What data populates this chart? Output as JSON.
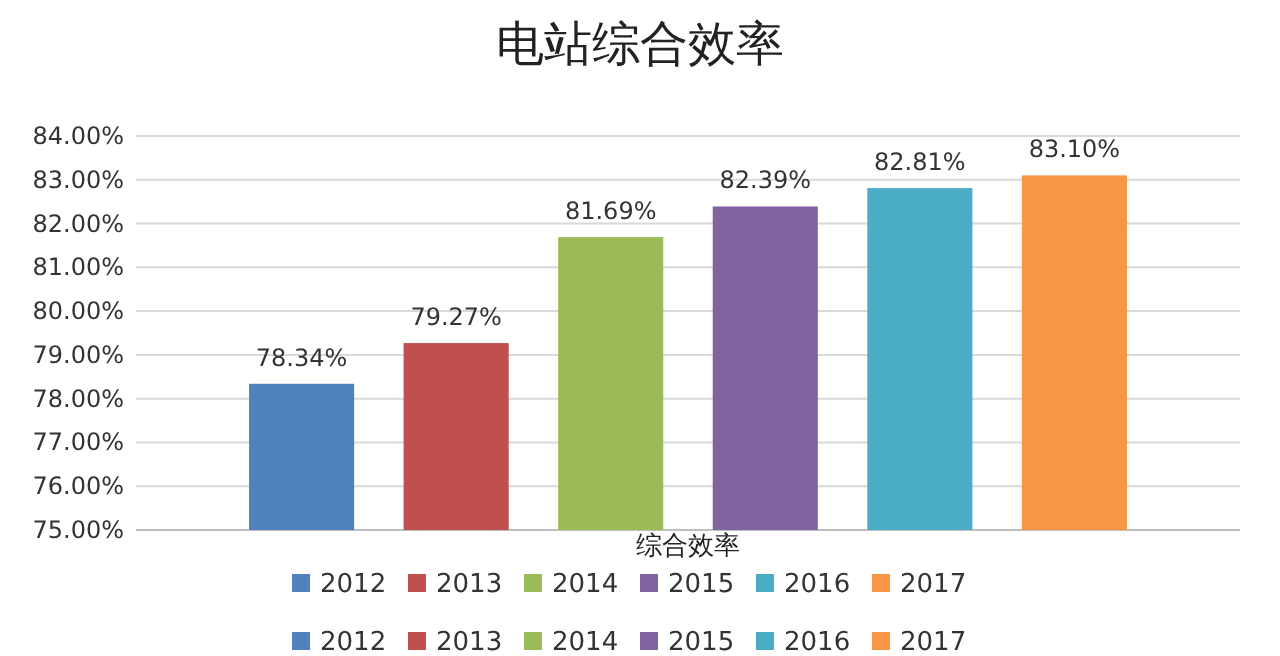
{
  "chart_data": {
    "type": "bar",
    "title": "电站综合效率",
    "categories": [
      "综合效率"
    ],
    "series": [
      {
        "name": "2012",
        "color": "#4f81bd",
        "values": [
          78.34
        ],
        "value_labels": [
          "78.34%"
        ]
      },
      {
        "name": "2013",
        "color": "#c0504d",
        "values": [
          79.27
        ],
        "value_labels": [
          "79.27%"
        ]
      },
      {
        "name": "2014",
        "color": "#9bbb59",
        "values": [
          81.69
        ],
        "value_labels": [
          "81.69%"
        ]
      },
      {
        "name": "2015",
        "color": "#8064a2",
        "values": [
          82.39
        ],
        "value_labels": [
          "82.39%"
        ]
      },
      {
        "name": "2016",
        "color": "#4bacc6",
        "values": [
          82.81
        ],
        "value_labels": [
          "82.81%"
        ]
      },
      {
        "name": "2017",
        "color": "#f79646",
        "values": [
          83.1
        ],
        "value_labels": [
          "83.10%"
        ]
      }
    ],
    "ylim": [
      75,
      84
    ],
    "yticks": [
      {
        "value": 75,
        "label": "75.00%"
      },
      {
        "value": 76,
        "label": "76.00%"
      },
      {
        "value": 77,
        "label": "77.00%"
      },
      {
        "value": 78,
        "label": "78.00%"
      },
      {
        "value": 79,
        "label": "79.00%"
      },
      {
        "value": 80,
        "label": "80.00%"
      },
      {
        "value": 81,
        "label": "81.00%"
      },
      {
        "value": 82,
        "label": "82.00%"
      },
      {
        "value": 83,
        "label": "83.00%"
      },
      {
        "value": 84,
        "label": "84.00%"
      }
    ],
    "grid": "y",
    "legend": "bottom"
  }
}
